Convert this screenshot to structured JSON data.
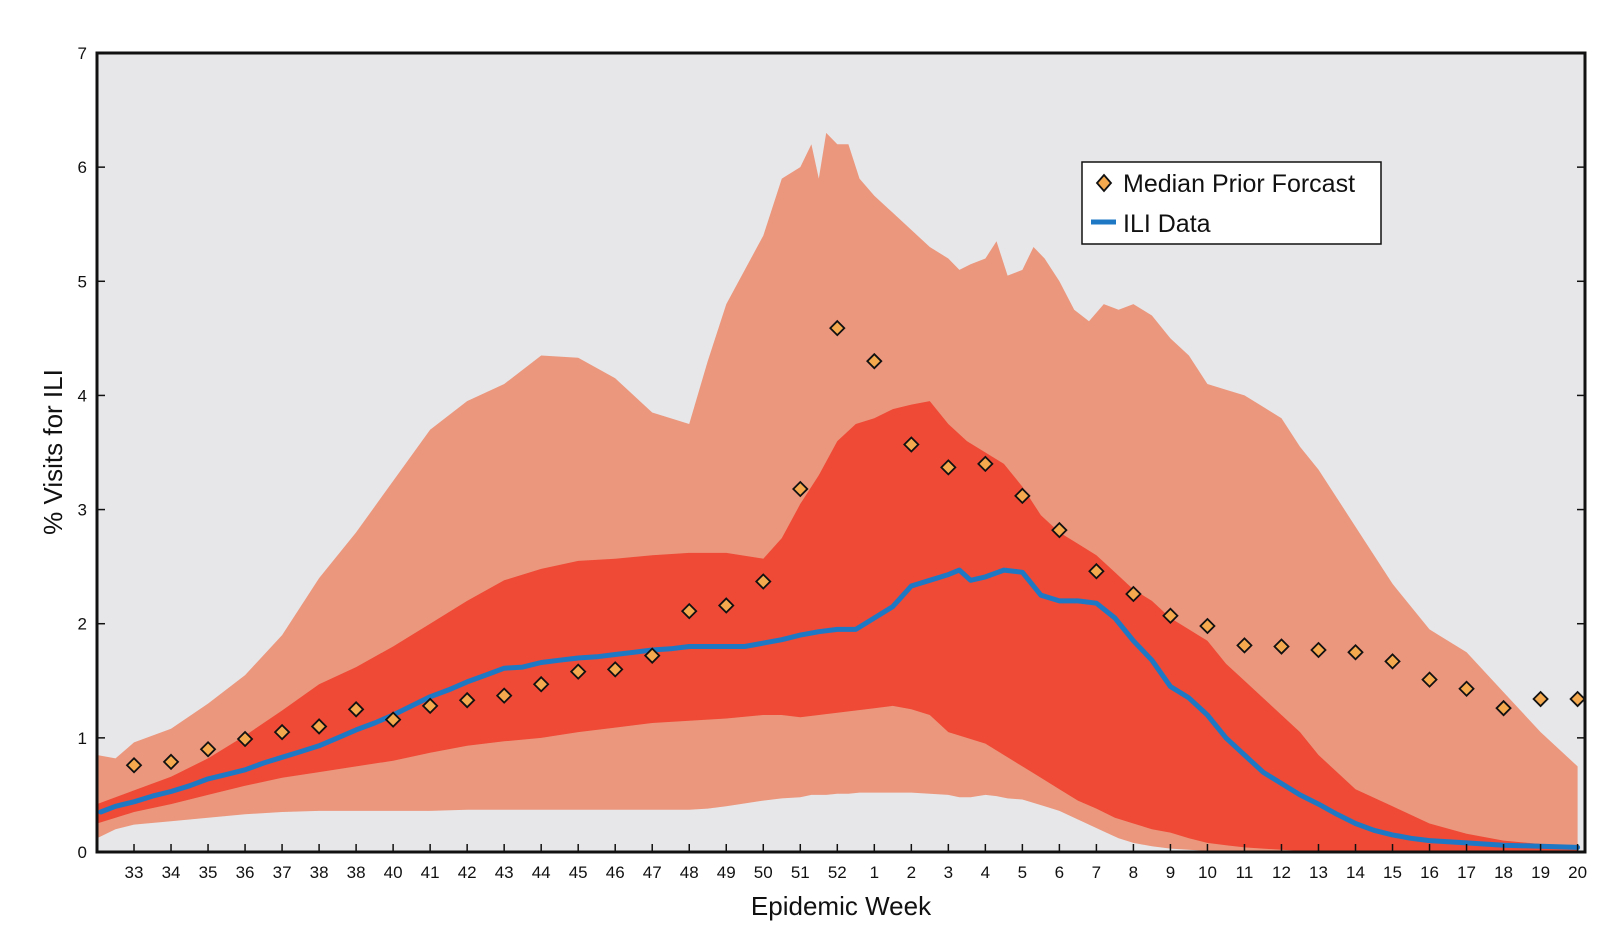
{
  "chart_data": {
    "type": "area",
    "xlabel": "Epidemic Week",
    "ylabel": "% Visits for ILI",
    "ylim": [
      0,
      7
    ],
    "yticks": [
      0,
      1,
      2,
      3,
      4,
      5,
      6,
      7
    ],
    "x": [
      1,
      2,
      3,
      4,
      5,
      6,
      7,
      8,
      9,
      10,
      11,
      12,
      13,
      14,
      15,
      16,
      17,
      18,
      19,
      20,
      21,
      22,
      23,
      24,
      25,
      26,
      27,
      28,
      29,
      30,
      31,
      32,
      33,
      34,
      35,
      36,
      37,
      38,
      39,
      40
    ],
    "xticklabels": [
      "33",
      "34",
      "35",
      "36",
      "37",
      "38",
      "38",
      "40",
      "41",
      "42",
      "43",
      "44",
      "45",
      "46",
      "47",
      "48",
      "49",
      "50",
      "51",
      "52",
      "1",
      "2",
      "3",
      "4",
      "5",
      "6",
      "7",
      "8",
      "9",
      "10",
      "11",
      "12",
      "13",
      "14",
      "15",
      "16",
      "17",
      "18",
      "19",
      "20"
    ],
    "grid": false,
    "legend_position": "top-right",
    "legend": [
      {
        "label": "Median Prior Forcast",
        "marker": "diamond"
      },
      {
        "label": "ILI Data",
        "marker": "line"
      }
    ],
    "colors": {
      "plot_bg": "#e7e7e9",
      "outer_band": "#eb977d",
      "inner_band": "#ee4a36",
      "ili_line": "#1f78c4",
      "median_marker": "#f4a94e",
      "marker_edge": "#111111"
    },
    "series": [
      {
        "name": "Median Prior Forcast",
        "kind": "scatter",
        "values": [
          0.76,
          0.79,
          0.9,
          0.99,
          1.05,
          1.1,
          1.25,
          1.16,
          1.28,
          1.33,
          1.37,
          1.47,
          1.58,
          1.6,
          1.72,
          2.11,
          2.16,
          2.37,
          3.18,
          4.59,
          4.3,
          3.57,
          3.37,
          3.4,
          3.12,
          2.82,
          2.46,
          2.26,
          2.07,
          1.98,
          1.81,
          1.8,
          1.77,
          1.75,
          1.67,
          1.51,
          1.43,
          1.26,
          1.34,
          1.34
        ]
      },
      {
        "name": "ILI Data",
        "kind": "line",
        "x": [
          0.1,
          0.5,
          1,
          1.5,
          2,
          2.5,
          3,
          3.5,
          4,
          4.5,
          5,
          5.5,
          6,
          6.5,
          7,
          7.5,
          8,
          8.5,
          9,
          9.5,
          10,
          10.5,
          11,
          11.5,
          12,
          12.5,
          13,
          13.5,
          14,
          14.5,
          15,
          15.5,
          16,
          16.5,
          17,
          17.5,
          18,
          18.5,
          19,
          19.5,
          20,
          20.5,
          21,
          21.5,
          22,
          22.5,
          23,
          23.3,
          23.6,
          24,
          24.5,
          25,
          25.5,
          26,
          26.5,
          27,
          27.5,
          28,
          28.5,
          29,
          29.5,
          30,
          30.5,
          31,
          31.5,
          32,
          32.5,
          33,
          33.5,
          34,
          34.5,
          35,
          35.5,
          36,
          37,
          38,
          39,
          40
        ],
        "values": [
          0.35,
          0.4,
          0.44,
          0.49,
          0.53,
          0.58,
          0.64,
          0.68,
          0.72,
          0.78,
          0.83,
          0.88,
          0.93,
          1.0,
          1.07,
          1.13,
          1.2,
          1.28,
          1.36,
          1.42,
          1.49,
          1.55,
          1.61,
          1.62,
          1.66,
          1.68,
          1.7,
          1.71,
          1.73,
          1.75,
          1.77,
          1.78,
          1.8,
          1.8,
          1.8,
          1.8,
          1.83,
          1.86,
          1.9,
          1.93,
          1.95,
          1.95,
          2.05,
          2.15,
          2.33,
          2.38,
          2.43,
          2.47,
          2.38,
          2.41,
          2.47,
          2.45,
          2.25,
          2.2,
          2.2,
          2.18,
          2.05,
          1.85,
          1.68,
          1.45,
          1.35,
          1.2,
          1.0,
          0.85,
          0.7,
          0.6,
          0.5,
          0.42,
          0.33,
          0.25,
          0.19,
          0.15,
          0.12,
          0.1,
          0.08,
          0.06,
          0.05,
          0.04
        ]
      },
      {
        "name": "",
        "kind": "band",
        "x": [
          0,
          0.5,
          1,
          2,
          3,
          4,
          5,
          6,
          7,
          8,
          9,
          10,
          11,
          12,
          13,
          14,
          15,
          15.5,
          16,
          16.5,
          17,
          18,
          18.5,
          19,
          19.3,
          19.5,
          19.7,
          20,
          20.3,
          20.6,
          21,
          21.5,
          22,
          22.5,
          23,
          23.3,
          23.6,
          24,
          24.3,
          24.6,
          25,
          25.3,
          25.6,
          26,
          26.4,
          26.8,
          27.2,
          27.6,
          28,
          28.5,
          29,
          29.5,
          30,
          30.5,
          31,
          31.5,
          32,
          32.5,
          33,
          34,
          35,
          36,
          37,
          38,
          39,
          40
        ],
        "upper": [
          0.85,
          0.82,
          0.96,
          1.08,
          1.3,
          1.55,
          1.9,
          2.4,
          2.8,
          3.25,
          3.7,
          3.95,
          4.1,
          4.35,
          4.33,
          4.15,
          3.85,
          3.8,
          3.75,
          4.3,
          4.8,
          5.4,
          5.9,
          6.0,
          6.2,
          5.9,
          6.3,
          6.2,
          6.2,
          5.9,
          5.75,
          5.6,
          5.45,
          5.3,
          5.2,
          5.1,
          5.15,
          5.2,
          5.35,
          5.05,
          5.1,
          5.3,
          5.2,
          5.0,
          4.75,
          4.65,
          4.8,
          4.75,
          4.8,
          4.7,
          4.5,
          4.35,
          4.1,
          4.05,
          4.0,
          3.9,
          3.8,
          3.55,
          3.35,
          2.85,
          2.35,
          1.95,
          1.75,
          1.4,
          1.05,
          0.75
        ],
        "lower": [
          0.12,
          0.2,
          0.24,
          0.27,
          0.3,
          0.33,
          0.35,
          0.36,
          0.36,
          0.36,
          0.36,
          0.37,
          0.37,
          0.37,
          0.37,
          0.37,
          0.37,
          0.37,
          0.37,
          0.38,
          0.4,
          0.45,
          0.47,
          0.48,
          0.5,
          0.5,
          0.5,
          0.51,
          0.51,
          0.52,
          0.52,
          0.52,
          0.52,
          0.51,
          0.5,
          0.48,
          0.48,
          0.5,
          0.49,
          0.47,
          0.46,
          0.43,
          0.4,
          0.36,
          0.3,
          0.24,
          0.18,
          0.12,
          0.08,
          0.05,
          0.03,
          0.02,
          0.01,
          0.01,
          0,
          0,
          0,
          0,
          0,
          0,
          0,
          0,
          0,
          0,
          0,
          0
        ]
      },
      {
        "name": "",
        "kind": "band",
        "x": [
          0,
          0.5,
          1,
          2,
          3,
          4,
          5,
          6,
          7,
          8,
          9,
          10,
          11,
          12,
          13,
          14,
          15,
          16,
          17,
          18,
          18.5,
          19,
          19.5,
          20,
          20.5,
          21,
          21.5,
          22,
          22.5,
          23,
          23.5,
          24,
          24.5,
          25,
          25.5,
          26,
          26.5,
          27,
          27.5,
          28,
          28.5,
          29,
          29.5,
          30,
          30.5,
          31,
          31.5,
          32,
          32.5,
          33,
          33.5,
          34,
          35,
          36,
          37,
          38,
          39,
          40
        ],
        "upper": [
          0.42,
          0.48,
          0.54,
          0.66,
          0.82,
          1.02,
          1.24,
          1.47,
          1.62,
          1.8,
          2.0,
          2.2,
          2.38,
          2.48,
          2.55,
          2.57,
          2.6,
          2.62,
          2.62,
          2.57,
          2.75,
          3.05,
          3.3,
          3.6,
          3.75,
          3.8,
          3.88,
          3.92,
          3.95,
          3.75,
          3.6,
          3.5,
          3.4,
          3.2,
          2.95,
          2.8,
          2.7,
          2.6,
          2.45,
          2.3,
          2.2,
          2.05,
          1.95,
          1.85,
          1.65,
          1.5,
          1.35,
          1.2,
          1.05,
          0.85,
          0.7,
          0.55,
          0.4,
          0.25,
          0.16,
          0.1,
          0.07,
          0.05
        ],
        "lower": [
          0.25,
          0.3,
          0.35,
          0.42,
          0.5,
          0.58,
          0.65,
          0.7,
          0.75,
          0.8,
          0.87,
          0.93,
          0.97,
          1.0,
          1.05,
          1.09,
          1.13,
          1.15,
          1.17,
          1.2,
          1.2,
          1.18,
          1.2,
          1.22,
          1.24,
          1.26,
          1.28,
          1.25,
          1.2,
          1.05,
          1.0,
          0.95,
          0.85,
          0.75,
          0.65,
          0.55,
          0.45,
          0.38,
          0.3,
          0.25,
          0.2,
          0.17,
          0.12,
          0.08,
          0.06,
          0.04,
          0.03,
          0.02,
          0.01,
          0,
          0,
          0,
          0,
          0,
          0,
          0,
          0,
          0
        ]
      }
    ]
  }
}
